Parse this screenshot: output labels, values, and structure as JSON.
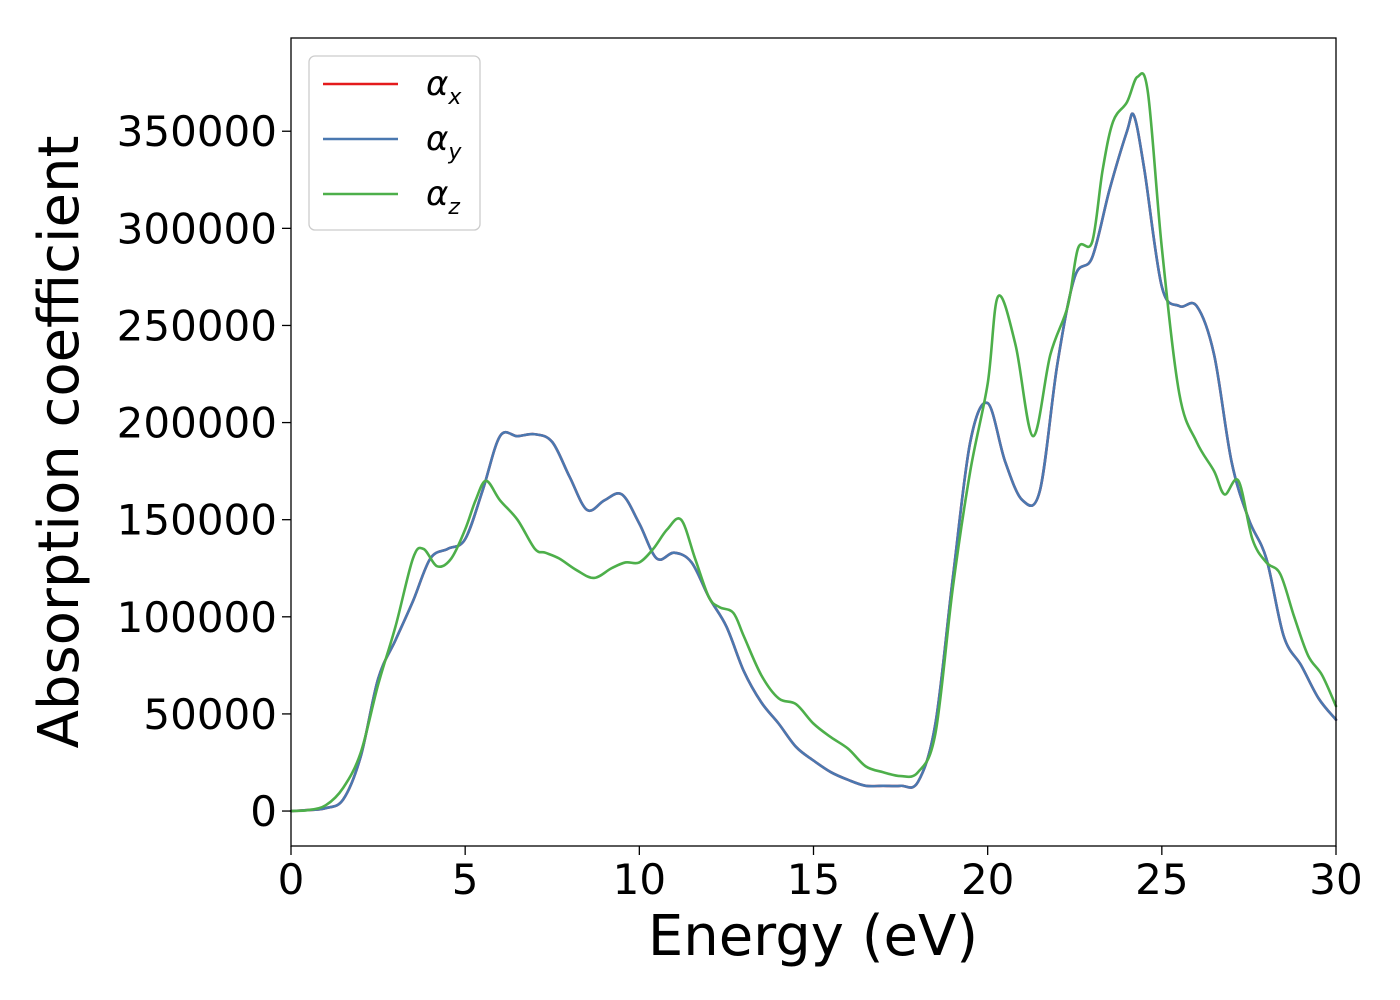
{
  "chart_data": {
    "type": "line",
    "title": "",
    "xlabel": "Energy (eV)",
    "ylabel": "Absorption coefficient",
    "xlim": [
      0,
      30
    ],
    "ylim": [
      -18000,
      398000
    ],
    "xticks": [
      0,
      5,
      10,
      15,
      20,
      25,
      30
    ],
    "yticks": [
      0,
      50000,
      100000,
      150000,
      200000,
      250000,
      300000,
      350000
    ],
    "grid": false,
    "legend": "top-left",
    "series": [
      {
        "name": "αx",
        "symbol": "α",
        "subscript": "x",
        "color": "#e41a1c",
        "x": [
          0,
          0.5,
          1.0,
          1.5,
          2.0,
          2.5,
          3.0,
          3.5,
          4.0,
          4.5,
          5.0,
          5.5,
          6.0,
          6.5,
          7.0,
          7.5,
          8.0,
          8.5,
          9.0,
          9.5,
          10.0,
          10.5,
          11.0,
          11.5,
          12.0,
          12.5,
          13.0,
          13.5,
          14.0,
          14.5,
          15.0,
          15.5,
          16.0,
          16.5,
          17.0,
          17.5,
          18.0,
          18.5,
          19.0,
          19.5,
          20.0,
          20.5,
          21.0,
          21.5,
          22.0,
          22.5,
          23.0,
          23.5,
          24.0,
          24.2,
          24.5,
          25.0,
          25.5,
          26.0,
          26.5,
          27.0,
          27.5,
          28.0,
          28.5,
          29.0,
          29.5,
          30.0
        ],
        "values": [
          0,
          500,
          1500,
          6000,
          28000,
          68000,
          88000,
          108000,
          130000,
          135000,
          140000,
          165000,
          193000,
          193000,
          194000,
          190000,
          172000,
          155000,
          160000,
          163000,
          148000,
          130000,
          133000,
          128000,
          110000,
          95000,
          72000,
          56000,
          45000,
          33000,
          26000,
          20000,
          16000,
          13000,
          13000,
          13000,
          15000,
          45000,
          120000,
          190000,
          210000,
          180000,
          160000,
          165000,
          230000,
          275000,
          285000,
          320000,
          350000,
          358000,
          330000,
          270000,
          260000,
          260000,
          235000,
          180000,
          150000,
          130000,
          90000,
          75000,
          58000,
          47000
        ]
      },
      {
        "name": "αy",
        "symbol": "α",
        "subscript": "y",
        "color": "#4a78b0",
        "x": [
          0,
          0.5,
          1.0,
          1.5,
          2.0,
          2.5,
          3.0,
          3.5,
          4.0,
          4.5,
          5.0,
          5.5,
          6.0,
          6.5,
          7.0,
          7.5,
          8.0,
          8.5,
          9.0,
          9.5,
          10.0,
          10.5,
          11.0,
          11.5,
          12.0,
          12.5,
          13.0,
          13.5,
          14.0,
          14.5,
          15.0,
          15.5,
          16.0,
          16.5,
          17.0,
          17.5,
          18.0,
          18.5,
          19.0,
          19.5,
          20.0,
          20.5,
          21.0,
          21.5,
          22.0,
          22.5,
          23.0,
          23.5,
          24.0,
          24.2,
          24.5,
          25.0,
          25.5,
          26.0,
          26.5,
          27.0,
          27.5,
          28.0,
          28.5,
          29.0,
          29.5,
          30.0
        ],
        "values": [
          0,
          500,
          1500,
          6000,
          28000,
          68000,
          88000,
          108000,
          130000,
          135000,
          140000,
          165000,
          193000,
          193000,
          194000,
          190000,
          172000,
          155000,
          160000,
          163000,
          148000,
          130000,
          133000,
          128000,
          110000,
          95000,
          72000,
          56000,
          45000,
          33000,
          26000,
          20000,
          16000,
          13000,
          13000,
          13000,
          15000,
          45000,
          120000,
          190000,
          210000,
          180000,
          160000,
          165000,
          230000,
          275000,
          285000,
          320000,
          350000,
          358000,
          330000,
          270000,
          260000,
          260000,
          235000,
          180000,
          150000,
          130000,
          90000,
          75000,
          58000,
          47000
        ]
      },
      {
        "name": "αz",
        "symbol": "α",
        "subscript": "z",
        "color": "#4daf4a",
        "x": [
          0,
          0.5,
          1.0,
          1.5,
          2.0,
          2.5,
          3.0,
          3.5,
          3.8,
          4.2,
          4.6,
          5.0,
          5.3,
          5.6,
          6.0,
          6.5,
          7.0,
          7.3,
          7.7,
          8.2,
          8.7,
          9.2,
          9.6,
          10.0,
          10.4,
          10.8,
          11.2,
          11.6,
          12.0,
          12.3,
          12.7,
          13.0,
          13.5,
          14.0,
          14.5,
          15.0,
          15.5,
          16.0,
          16.5,
          17.0,
          17.5,
          18.0,
          18.5,
          19.0,
          19.5,
          20.0,
          20.3,
          20.8,
          21.3,
          21.8,
          22.3,
          22.6,
          23.0,
          23.3,
          23.6,
          24.0,
          24.3,
          24.6,
          25.0,
          25.5,
          26.0,
          26.5,
          26.8,
          27.2,
          27.6,
          28.0,
          28.4,
          28.8,
          29.2,
          29.6,
          30.0
        ],
        "values": [
          0,
          500,
          3000,
          12000,
          30000,
          65000,
          95000,
          130000,
          135000,
          126000,
          130000,
          145000,
          160000,
          170000,
          160000,
          150000,
          135000,
          133000,
          130000,
          124000,
          120000,
          125000,
          128000,
          128000,
          135000,
          145000,
          150000,
          130000,
          110000,
          105000,
          102000,
          90000,
          70000,
          58000,
          55000,
          45000,
          38000,
          32000,
          23000,
          20000,
          18000,
          20000,
          40000,
          115000,
          175000,
          220000,
          265000,
          240000,
          193000,
          235000,
          260000,
          290000,
          293000,
          330000,
          355000,
          365000,
          378000,
          370000,
          290000,
          215000,
          190000,
          175000,
          163000,
          170000,
          140000,
          128000,
          122000,
          100000,
          80000,
          70000,
          54000
        ]
      }
    ]
  }
}
